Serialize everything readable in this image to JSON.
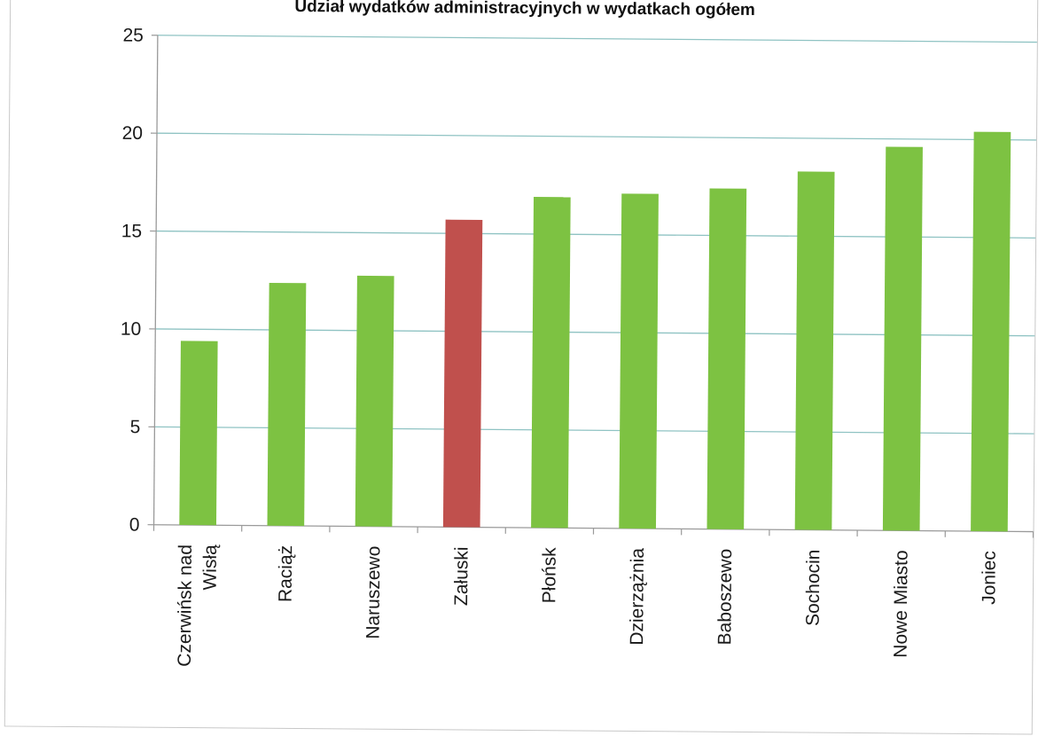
{
  "chart_data": {
    "type": "bar",
    "title": "Udział wydatków administracyjnych w wydatkach ogółem",
    "xlabel": "",
    "ylabel": "",
    "ylim": [
      0,
      25
    ],
    "yticks": [
      0,
      5,
      10,
      15,
      20,
      25
    ],
    "grid": true,
    "legend": "none",
    "categories": [
      [
        "Czerwińsk nad",
        "Wisłą"
      ],
      [
        "Raciąż"
      ],
      [
        "Naruszewo"
      ],
      [
        "Załuski"
      ],
      [
        "Płońsk"
      ],
      [
        "Dzierzążnia"
      ],
      [
        "Baboszewo"
      ],
      [
        "Sochocin"
      ],
      [
        "Nowe Miasto"
      ],
      [
        "Joniec"
      ]
    ],
    "values": [
      9.4,
      12.4,
      12.8,
      15.7,
      16.9,
      17.1,
      17.4,
      18.3,
      19.6,
      20.4
    ],
    "highlight_index": 3,
    "colors": {
      "bar": "#7dc242",
      "highlight": "#c0504d",
      "grid": "#8fc3c3",
      "axis": "#9a9a9a"
    }
  }
}
